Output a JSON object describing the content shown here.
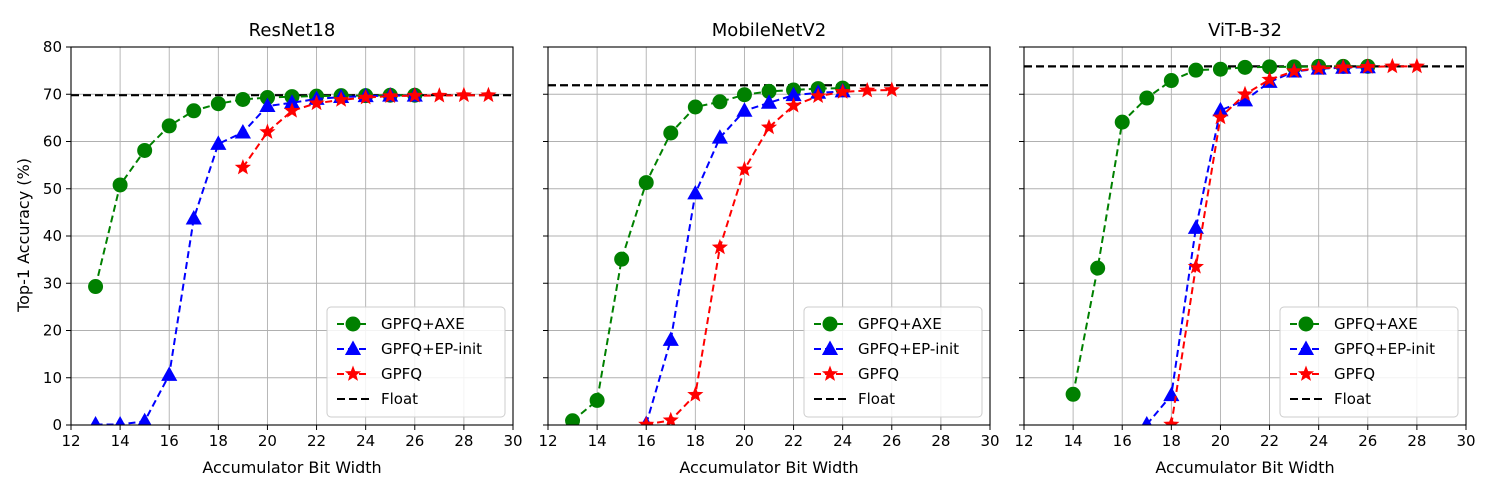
{
  "figure": {
    "ylabel": "Top-1 Accuracy (%)",
    "xlabel": "Accumulator Bit Width"
  },
  "legend": {
    "entries": [
      "GPFQ+AXE",
      "GPFQ+EP-init",
      "GPFQ",
      "Float"
    ],
    "location": "lower-right"
  },
  "colors": {
    "GPFQ+AXE": "#008000",
    "GPFQ+EP-init": "#0000ff",
    "GPFQ": "#ff0000",
    "Float": "#000000"
  },
  "chart_data": [
    {
      "type": "line",
      "title": "ResNet18",
      "xlabel": "Accumulator Bit Width",
      "ylabel": "Top-1 Accuracy (%)",
      "xlim": [
        12,
        30
      ],
      "ylim": [
        0,
        80
      ],
      "xticks": [
        12,
        14,
        16,
        18,
        20,
        22,
        24,
        26,
        28,
        30
      ],
      "yticks": [
        0,
        10,
        20,
        30,
        40,
        50,
        60,
        70,
        80
      ],
      "grid": true,
      "float_value": 69.8,
      "series": [
        {
          "name": "GPFQ+AXE",
          "marker": "circle",
          "x": [
            13,
            14,
            15,
            16,
            17,
            18,
            19,
            20,
            21,
            22,
            23,
            24,
            25,
            26
          ],
          "y": [
            29.3,
            50.8,
            58.1,
            63.3,
            66.5,
            68.0,
            68.9,
            69.3,
            69.5,
            69.6,
            69.7,
            69.7,
            69.8,
            69.8
          ]
        },
        {
          "name": "GPFQ+EP-init",
          "marker": "triangle",
          "x": [
            13,
            14,
            15,
            16,
            17,
            18,
            19,
            20,
            21,
            22,
            23,
            24,
            25,
            26
          ],
          "y": [
            0.1,
            0.1,
            0.8,
            10.6,
            43.7,
            59.5,
            61.9,
            67.5,
            68.2,
            69.0,
            69.4,
            69.6,
            69.7,
            69.7
          ]
        },
        {
          "name": "GPFQ",
          "marker": "star",
          "x": [
            19,
            20,
            21,
            22,
            23,
            24,
            25,
            26,
            27,
            28,
            29
          ],
          "y": [
            54.5,
            62.0,
            66.5,
            68.1,
            68.8,
            69.3,
            69.6,
            69.7,
            69.7,
            69.8,
            69.8
          ]
        }
      ]
    },
    {
      "type": "line",
      "title": "MobileNetV2",
      "xlabel": "Accumulator Bit Width",
      "ylabel": "",
      "xlim": [
        12,
        30
      ],
      "ylim": [
        0,
        80
      ],
      "xticks": [
        12,
        14,
        16,
        18,
        20,
        22,
        24,
        26,
        28,
        30
      ],
      "yticks": [
        0,
        10,
        20,
        30,
        40,
        50,
        60,
        70,
        80
      ],
      "grid": true,
      "float_value": 71.9,
      "series": [
        {
          "name": "GPFQ+AXE",
          "marker": "circle",
          "x": [
            13,
            14,
            15,
            16,
            17,
            18,
            19,
            20,
            21,
            22,
            23,
            24
          ],
          "y": [
            0.9,
            5.2,
            35.1,
            51.3,
            61.8,
            67.3,
            68.4,
            69.9,
            70.6,
            70.9,
            71.2,
            71.3
          ]
        },
        {
          "name": "GPFQ+EP-init",
          "marker": "triangle",
          "x": [
            16,
            17,
            18,
            19,
            20,
            21,
            22,
            23,
            24
          ],
          "y": [
            0.2,
            18.0,
            49.0,
            60.8,
            66.5,
            68.2,
            69.8,
            70.3,
            70.6
          ]
        },
        {
          "name": "GPFQ",
          "marker": "star",
          "x": [
            16,
            17,
            18,
            19,
            20,
            21,
            22,
            23,
            24,
            25,
            26
          ],
          "y": [
            0.1,
            1.0,
            6.4,
            37.6,
            54.1,
            63.0,
            67.6,
            69.6,
            70.5,
            70.8,
            70.9
          ]
        }
      ]
    },
    {
      "type": "line",
      "title": "ViT-B-32",
      "xlabel": "Accumulator Bit Width",
      "ylabel": "",
      "xlim": [
        12,
        30
      ],
      "ylim": [
        0,
        80
      ],
      "xticks": [
        12,
        14,
        16,
        18,
        20,
        22,
        24,
        26,
        28,
        30
      ],
      "yticks": [
        0,
        10,
        20,
        30,
        40,
        50,
        60,
        70,
        80
      ],
      "grid": true,
      "float_value": 75.9,
      "series": [
        {
          "name": "GPFQ+AXE",
          "marker": "circle",
          "x": [
            14,
            15,
            16,
            17,
            18,
            19,
            20,
            21,
            22,
            23,
            24,
            25,
            26
          ],
          "y": [
            6.5,
            33.2,
            64.1,
            69.2,
            72.9,
            75.1,
            75.3,
            75.7,
            75.8,
            75.8,
            75.9,
            75.9,
            75.9
          ]
        },
        {
          "name": "GPFQ+EP-init",
          "marker": "triangle",
          "x": [
            17,
            18,
            19,
            20,
            21,
            22,
            23,
            24,
            25,
            26
          ],
          "y": [
            0.1,
            6.3,
            41.7,
            66.6,
            68.7,
            72.6,
            74.8,
            75.4,
            75.6,
            75.7
          ]
        },
        {
          "name": "GPFQ",
          "marker": "star",
          "x": [
            18,
            19,
            20,
            21,
            22,
            23,
            24,
            25,
            26,
            27,
            28
          ],
          "y": [
            0.1,
            33.5,
            65.1,
            70.0,
            73.1,
            74.9,
            75.5,
            75.7,
            75.8,
            75.9,
            75.9
          ]
        }
      ]
    }
  ]
}
